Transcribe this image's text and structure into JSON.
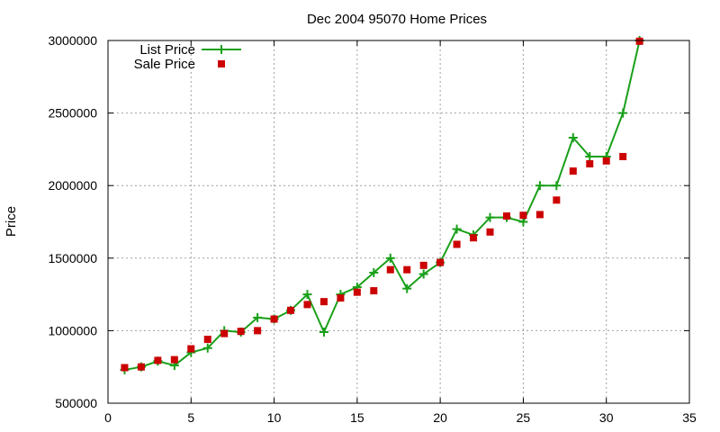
{
  "chart_data": {
    "type": "scatter",
    "title": "Dec 2004 95070 Home Prices",
    "xlabel": "",
    "ylabel": "Price",
    "xlim": [
      0,
      35
    ],
    "ylim": [
      500000,
      3000000
    ],
    "xticks": [
      "0",
      "5",
      "10",
      "15",
      "20",
      "25",
      "30",
      "35"
    ],
    "yticks": [
      "500000",
      "1000000",
      "1500000",
      "2000000",
      "2500000",
      "3000000"
    ],
    "grid": true,
    "legend_position": "top-left",
    "series": [
      {
        "name": "List Price",
        "style": "line-with-plus-markers",
        "color": "#1aa01a",
        "x": [
          1,
          2,
          3,
          4,
          5,
          6,
          7,
          8,
          9,
          10,
          11,
          12,
          13,
          14,
          15,
          16,
          17,
          18,
          19,
          20,
          21,
          22,
          23,
          24,
          25,
          26,
          27,
          28,
          29,
          30,
          31,
          32
        ],
        "y": [
          730000,
          750000,
          790000,
          760000,
          850000,
          880000,
          1000000,
          990000,
          1090000,
          1080000,
          1140000,
          1250000,
          990000,
          1250000,
          1300000,
          1400000,
          1500000,
          1290000,
          1390000,
          1470000,
          1700000,
          1660000,
          1780000,
          1780000,
          1750000,
          2000000,
          2000000,
          2330000,
          2200000,
          2200000,
          2500000,
          3000000
        ]
      },
      {
        "name": "Sale Price",
        "style": "square-markers",
        "color": "#cc0000",
        "x": [
          1,
          2,
          3,
          4,
          5,
          6,
          7,
          8,
          9,
          10,
          11,
          12,
          13,
          14,
          15,
          16,
          17,
          18,
          19,
          20,
          21,
          22,
          23,
          24,
          25,
          26,
          27,
          28,
          29,
          30,
          31,
          32
        ],
        "y": [
          745000,
          750000,
          795000,
          800000,
          875000,
          940000,
          980000,
          995000,
          1000000,
          1080000,
          1140000,
          1180000,
          1200000,
          1225000,
          1265000,
          1275000,
          1420000,
          1420000,
          1450000,
          1470000,
          1595000,
          1640000,
          1680000,
          1790000,
          1795000,
          1800000,
          1900000,
          2100000,
          2150000,
          2170000,
          2200000,
          2995000
        ]
      }
    ]
  }
}
